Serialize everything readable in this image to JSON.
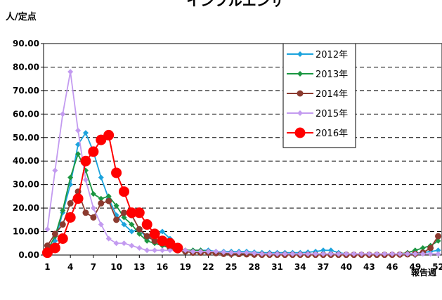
{
  "chart_data": {
    "type": "line",
    "title": "インフルエンザ",
    "ylabel": "人/定点",
    "xlabel": "報告週",
    "ylim": [
      0,
      90
    ],
    "yticks": [
      "0.00",
      "10.00",
      "20.00",
      "30.00",
      "40.00",
      "50.00",
      "60.00",
      "70.00",
      "80.00",
      "90.00"
    ],
    "xticks": [
      1,
      4,
      7,
      10,
      13,
      16,
      19,
      22,
      25,
      28,
      31,
      34,
      37,
      40,
      43,
      46,
      49,
      52
    ],
    "grid": "horizontal dashed",
    "legend_position": "top-right",
    "series": [
      {
        "name": "2012年",
        "color": "#1ba3dd",
        "marker": "diamond",
        "points": [
          [
            1,
            2
          ],
          [
            2,
            6
          ],
          [
            3,
            18
          ],
          [
            4,
            30
          ],
          [
            5,
            47
          ],
          [
            6,
            52
          ],
          [
            7,
            44
          ],
          [
            8,
            33
          ],
          [
            9,
            24
          ],
          [
            10,
            17
          ],
          [
            11,
            13
          ],
          [
            12,
            10
          ],
          [
            13,
            11
          ],
          [
            14,
            7
          ],
          [
            15,
            8
          ],
          [
            16,
            10
          ],
          [
            17,
            7
          ],
          [
            18,
            3
          ],
          [
            19,
            2
          ],
          [
            20,
            2
          ],
          [
            21,
            2
          ],
          [
            22,
            2
          ],
          [
            23,
            1.5
          ],
          [
            24,
            1.5
          ],
          [
            25,
            1.5
          ],
          [
            26,
            1.5
          ],
          [
            27,
            1.5
          ],
          [
            28,
            1.2
          ],
          [
            29,
            1
          ],
          [
            30,
            1
          ],
          [
            31,
            1
          ],
          [
            32,
            1
          ],
          [
            33,
            1
          ],
          [
            34,
            1
          ],
          [
            35,
            1.2
          ],
          [
            36,
            1.5
          ],
          [
            37,
            2
          ],
          [
            38,
            2
          ],
          [
            39,
            1
          ],
          [
            40,
            0.5
          ],
          [
            41,
            0.3
          ],
          [
            42,
            0.2
          ],
          [
            43,
            0.2
          ],
          [
            44,
            0.2
          ],
          [
            45,
            0.2
          ],
          [
            46,
            0.2
          ],
          [
            47,
            0.3
          ],
          [
            48,
            0.5
          ],
          [
            49,
            0.8
          ],
          [
            50,
            1
          ],
          [
            51,
            1.5
          ],
          [
            52,
            2
          ]
        ]
      },
      {
        "name": "2013年",
        "color": "#1a9641",
        "marker": "diamond",
        "points": [
          [
            1,
            2
          ],
          [
            2,
            8
          ],
          [
            3,
            19
          ],
          [
            4,
            33
          ],
          [
            5,
            43
          ],
          [
            6,
            36
          ],
          [
            7,
            26
          ],
          [
            8,
            24
          ],
          [
            9,
            25
          ],
          [
            10,
            21
          ],
          [
            11,
            16
          ],
          [
            12,
            13
          ],
          [
            13,
            9
          ],
          [
            14,
            6
          ],
          [
            15,
            5
          ],
          [
            16,
            4
          ],
          [
            17,
            3
          ],
          [
            18,
            3
          ],
          [
            19,
            2
          ],
          [
            20,
            2
          ],
          [
            21,
            2
          ],
          [
            22,
            1.5
          ],
          [
            23,
            1
          ],
          [
            24,
            1
          ],
          [
            25,
            1
          ],
          [
            26,
            0.8
          ],
          [
            27,
            0.5
          ],
          [
            28,
            0.5
          ],
          [
            29,
            0.4
          ],
          [
            30,
            0.3
          ],
          [
            31,
            0.3
          ],
          [
            32,
            0.3
          ],
          [
            33,
            0.3
          ],
          [
            34,
            0.3
          ],
          [
            35,
            0.3
          ],
          [
            36,
            0.3
          ],
          [
            37,
            0.3
          ],
          [
            38,
            0.3
          ],
          [
            39,
            0.3
          ],
          [
            40,
            0.3
          ],
          [
            41,
            0.3
          ],
          [
            42,
            0.3
          ],
          [
            43,
            0.3
          ],
          [
            44,
            0.3
          ],
          [
            45,
            0.3
          ],
          [
            46,
            0.3
          ],
          [
            47,
            0.5
          ],
          [
            48,
            1
          ],
          [
            49,
            2
          ],
          [
            50,
            3
          ],
          [
            51,
            4
          ],
          [
            52,
            6
          ]
        ]
      },
      {
        "name": "2014年",
        "color": "#8b3a2f",
        "marker": "circle",
        "points": [
          [
            1,
            4
          ],
          [
            2,
            9
          ],
          [
            3,
            13
          ],
          [
            4,
            22
          ],
          [
            5,
            27
          ],
          [
            6,
            18
          ],
          [
            7,
            16
          ],
          [
            8,
            22
          ],
          [
            9,
            23
          ],
          [
            10,
            15
          ],
          [
            11,
            18
          ],
          [
            12,
            17
          ],
          [
            13,
            11
          ],
          [
            14,
            8
          ],
          [
            15,
            6
          ],
          [
            16,
            5
          ],
          [
            17,
            3
          ],
          [
            18,
            2
          ],
          [
            19,
            1.5
          ],
          [
            20,
            1
          ],
          [
            21,
            1
          ],
          [
            22,
            1
          ],
          [
            23,
            0.8
          ],
          [
            24,
            0.5
          ],
          [
            25,
            0.5
          ],
          [
            26,
            0.4
          ],
          [
            27,
            0.3
          ],
          [
            28,
            0.2
          ],
          [
            29,
            0.1
          ],
          [
            30,
            0.1
          ],
          [
            31,
            0.1
          ],
          [
            32,
            0.1
          ],
          [
            33,
            0.1
          ],
          [
            34,
            0.1
          ],
          [
            35,
            0.1
          ],
          [
            36,
            0.1
          ],
          [
            37,
            0.1
          ],
          [
            38,
            0.1
          ],
          [
            39,
            0.1
          ],
          [
            40,
            0.1
          ],
          [
            41,
            0.1
          ],
          [
            42,
            0.1
          ],
          [
            43,
            0.1
          ],
          [
            44,
            0.1
          ],
          [
            45,
            0.1
          ],
          [
            46,
            0.1
          ],
          [
            47,
            0.2
          ],
          [
            48,
            0.3
          ],
          [
            49,
            0.5
          ],
          [
            50,
            1
          ],
          [
            51,
            3
          ],
          [
            52,
            8
          ]
        ]
      },
      {
        "name": "2015年",
        "color": "#c39bf0",
        "marker": "diamond",
        "points": [
          [
            1,
            11
          ],
          [
            2,
            36
          ],
          [
            3,
            60
          ],
          [
            4,
            78
          ],
          [
            5,
            53
          ],
          [
            6,
            32
          ],
          [
            7,
            20
          ],
          [
            8,
            13
          ],
          [
            9,
            7
          ],
          [
            10,
            5
          ],
          [
            11,
            5
          ],
          [
            12,
            4
          ],
          [
            13,
            3
          ],
          [
            14,
            2
          ],
          [
            15,
            2
          ],
          [
            16,
            2
          ],
          [
            17,
            2
          ],
          [
            18,
            2
          ],
          [
            19,
            2
          ],
          [
            20,
            1.5
          ],
          [
            21,
            1.5
          ],
          [
            22,
            1.5
          ],
          [
            23,
            1.5
          ],
          [
            24,
            1.2
          ],
          [
            25,
            1
          ],
          [
            26,
            1
          ],
          [
            27,
            1
          ],
          [
            28,
            0.8
          ],
          [
            29,
            0.5
          ],
          [
            30,
            0.5
          ],
          [
            31,
            0.5
          ],
          [
            32,
            0.5
          ],
          [
            33,
            0.5
          ],
          [
            34,
            0.5
          ],
          [
            35,
            0.5
          ],
          [
            36,
            0.5
          ],
          [
            37,
            0.5
          ],
          [
            38,
            0.5
          ],
          [
            39,
            0.5
          ],
          [
            40,
            0.5
          ],
          [
            41,
            0.5
          ],
          [
            42,
            0.5
          ],
          [
            43,
            0.5
          ],
          [
            44,
            0.5
          ],
          [
            45,
            0.5
          ],
          [
            46,
            0.5
          ],
          [
            47,
            0.5
          ],
          [
            48,
            0.5
          ],
          [
            49,
            0.5
          ],
          [
            50,
            0.5
          ],
          [
            51,
            0.5
          ],
          [
            52,
            0.5
          ]
        ]
      },
      {
        "name": "2016年",
        "color": "#ff0000",
        "marker": "circle-large",
        "points": [
          [
            1,
            1
          ],
          [
            2,
            3
          ],
          [
            3,
            7
          ],
          [
            4,
            16
          ],
          [
            5,
            24
          ],
          [
            6,
            40
          ],
          [
            7,
            44
          ],
          [
            8,
            49
          ],
          [
            9,
            51
          ],
          [
            10,
            35
          ],
          [
            11,
            27
          ],
          [
            12,
            18
          ],
          [
            13,
            18
          ],
          [
            14,
            13
          ],
          [
            15,
            9
          ],
          [
            16,
            6
          ],
          [
            17,
            5
          ],
          [
            18,
            3
          ]
        ]
      }
    ]
  }
}
